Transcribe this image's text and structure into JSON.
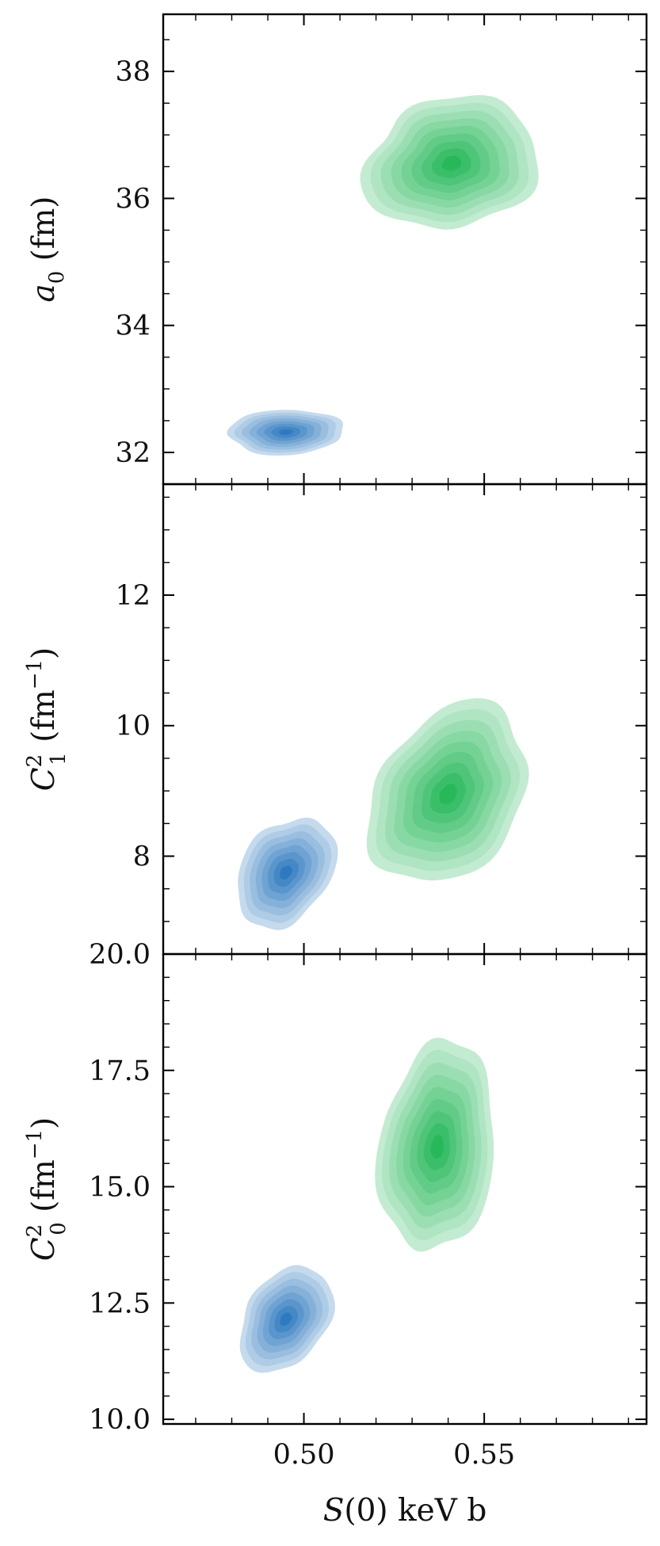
{
  "chart_data": [
    {
      "type": "contour",
      "panel": "top",
      "ylabel": "a_0 (fm)",
      "ylabel_parts": {
        "symbol": "a",
        "sub": "0",
        "unit": " (fm)"
      },
      "xlim": [
        0.461,
        0.595
      ],
      "ylim": [
        31.5,
        38.9
      ],
      "yticks": [
        {
          "value": 32,
          "label": "32"
        },
        {
          "value": 34,
          "label": "34"
        },
        {
          "value": 36,
          "label": "36"
        },
        {
          "value": 38,
          "label": "38"
        }
      ],
      "y_minor_step": 0.5,
      "series": [
        {
          "color": "#2f7abf",
          "levels": 8,
          "center": [
            0.495,
            32.32
          ],
          "radii": [
            0.016,
            0.36
          ],
          "angle": 5,
          "irregularity": 0.06
        },
        {
          "color": "#27b85a",
          "levels": 9,
          "center": [
            0.541,
            36.55
          ],
          "radii": [
            0.025,
            1.05
          ],
          "angle": 15,
          "irregularity": 0.09
        }
      ]
    },
    {
      "type": "contour",
      "panel": "middle",
      "ylabel": "C_1^2 (fm^-1)",
      "ylabel_parts": {
        "symbol": "C",
        "sup": "2",
        "sub": "1",
        "unit_pre": " (fm",
        "unit_sup": "−1",
        "unit_post": ")"
      },
      "xlim": [
        0.461,
        0.595
      ],
      "ylim": [
        6.5,
        13.7
      ],
      "yticks": [
        {
          "value": 8,
          "label": "8"
        },
        {
          "value": 10,
          "label": "10"
        },
        {
          "value": 12,
          "label": "12"
        }
      ],
      "y_minor_step": 0.5,
      "series": [
        {
          "color": "#2f7abf",
          "levels": 8,
          "center": [
            0.495,
            7.75
          ],
          "radii": [
            0.017,
            0.88
          ],
          "angle": 40,
          "irregularity": 0.07
        },
        {
          "color": "#27b85a",
          "levels": 9,
          "center": [
            0.54,
            8.95
          ],
          "radii": [
            0.027,
            1.45
          ],
          "angle": 40,
          "irregularity": 0.08
        }
      ]
    },
    {
      "type": "contour",
      "panel": "bottom",
      "ylabel": "C_0^2 (fm^-1)",
      "ylabel_parts": {
        "symbol": "C",
        "sup": "2",
        "sub": "0",
        "unit_pre": " (fm",
        "unit_sup": "−1",
        "unit_post": ")"
      },
      "xlim": [
        0.461,
        0.595
      ],
      "ylim": [
        9.9,
        20.0
      ],
      "yticks": [
        {
          "value": 10.0,
          "label": "10.0"
        },
        {
          "value": 12.5,
          "label": "12.5"
        },
        {
          "value": 15.0,
          "label": "15.0"
        },
        {
          "value": 17.5,
          "label": "17.5"
        },
        {
          "value": 20.0,
          "label": "20.0"
        }
      ],
      "y_minor_step": 0.5,
      "xlabel": "S(0) keV b",
      "xlabel_parts": {
        "symbol": "S",
        "rest": "(0) keV b"
      },
      "xticks": [
        {
          "value": 0.5,
          "label": "0.50"
        },
        {
          "value": 0.55,
          "label": "0.55"
        }
      ],
      "x_minor_step": 0.01,
      "series": [
        {
          "color": "#2f7abf",
          "levels": 8,
          "center": [
            0.495,
            12.15
          ],
          "radii": [
            0.017,
            1.2
          ],
          "angle": 45,
          "irregularity": 0.06
        },
        {
          "color": "#27b85a",
          "levels": 9,
          "center": [
            0.537,
            15.85
          ],
          "radii": [
            0.022,
            2.45
          ],
          "angle": 62,
          "irregularity": 0.08
        }
      ]
    }
  ]
}
